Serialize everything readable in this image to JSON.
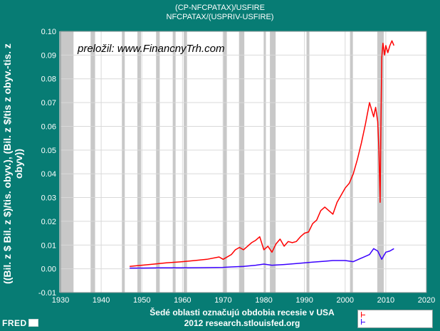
{
  "header": {
    "title_line1": "(CP-NFCPATAX)/USFIRE",
    "title_line2": "NFCPATAX/(USPRIV-USFIRE)"
  },
  "watermark": "preložil: www.FinancnyTrh.com",
  "footer": {
    "xlabel_line1": "Šedé oblasti označujú obdobia recesie v USA",
    "xlabel_line2": "2012 research.stlouisfed.org",
    "logo_text": "FRED"
  },
  "colors": {
    "background": "#077c74",
    "plot_background": "#ffffff",
    "recession": "#c8c8c8",
    "grid": "#d9d9d9",
    "series1": "#ff0000",
    "series2": "#3a00ff"
  },
  "chart_data": {
    "type": "line",
    "ylabel": "((Bil. z $ Bil. z $)/tis. obyv.), (Bil. z $/tis z obyv.-tis. z obyv))",
    "xlim": [
      1930,
      2020
    ],
    "ylim": [
      -0.01,
      0.1
    ],
    "x_ticks": [
      "1930",
      "1940",
      "1950",
      "1960",
      "1970",
      "1980",
      "1990",
      "2000",
      "2010",
      "2020"
    ],
    "y_ticks": [
      "-0.01",
      "0.00",
      "0.01",
      "0.02",
      "0.03",
      "0.04",
      "0.05",
      "0.06",
      "0.07",
      "0.08",
      "0.09",
      "0.10"
    ],
    "recessions": [
      [
        1929.7,
        1933.2
      ],
      [
        1937.4,
        1938.5
      ],
      [
        1945.1,
        1945.8
      ],
      [
        1948.9,
        1949.8
      ],
      [
        1953.5,
        1954.4
      ],
      [
        1957.6,
        1958.3
      ],
      [
        1960.3,
        1961.1
      ],
      [
        1969.9,
        1970.9
      ],
      [
        1973.9,
        1975.2
      ],
      [
        1980.0,
        1980.5
      ],
      [
        1981.5,
        1982.9
      ],
      [
        1990.5,
        1991.2
      ],
      [
        2001.2,
        2001.9
      ],
      [
        2007.9,
        2009.5
      ]
    ],
    "series": [
      {
        "x": [
          1947,
          1950,
          1953,
          1956,
          1960,
          1963,
          1966,
          1969,
          1970,
          1972,
          1973,
          1974,
          1975,
          1976,
          1977,
          1978,
          1979,
          1980,
          1981,
          1982,
          1983,
          1984,
          1985,
          1986,
          1987,
          1988,
          1989,
          1990,
          1991,
          1992,
          1993,
          1994,
          1995,
          1996,
          1997,
          1998,
          1999,
          2000,
          2001,
          2002,
          2003,
          2004,
          2005,
          2006,
          2007,
          2007.5,
          2008,
          2008.3,
          2008.6,
          2008.8,
          2009,
          2009.3,
          2009.7,
          2010,
          2010.5,
          2011,
          2011.5,
          2012
        ],
        "values": [
          0.001,
          0.0015,
          0.002,
          0.0025,
          0.003,
          0.0035,
          0.004,
          0.005,
          0.004,
          0.006,
          0.008,
          0.009,
          0.008,
          0.0095,
          0.011,
          0.012,
          0.0135,
          0.008,
          0.0095,
          0.007,
          0.0105,
          0.0125,
          0.0095,
          0.0115,
          0.011,
          0.0115,
          0.0135,
          0.015,
          0.0155,
          0.019,
          0.0205,
          0.0245,
          0.026,
          0.0245,
          0.023,
          0.028,
          0.031,
          0.034,
          0.036,
          0.04,
          0.046,
          0.053,
          0.061,
          0.07,
          0.064,
          0.068,
          0.062,
          0.05,
          0.028,
          0.06,
          0.089,
          0.095,
          0.09,
          0.094,
          0.091,
          0.094,
          0.096,
          0.094
        ]
      },
      {
        "x": [
          1947,
          1950,
          1955,
          1960,
          1965,
          1970,
          1972,
          1975,
          1978,
          1980,
          1982,
          1985,
          1988,
          1990,
          1992,
          1995,
          1997,
          2000,
          2002,
          2004,
          2006,
          2007,
          2008,
          2009,
          2010,
          2011,
          2012
        ],
        "values": [
          0.0003,
          0.0003,
          0.0004,
          0.0004,
          0.0005,
          0.0006,
          0.0008,
          0.001,
          0.0015,
          0.002,
          0.0015,
          0.0018,
          0.0022,
          0.0025,
          0.0028,
          0.0032,
          0.0035,
          0.0035,
          0.003,
          0.0045,
          0.006,
          0.0085,
          0.0075,
          0.004,
          0.007,
          0.0075,
          0.0085
        ]
      }
    ]
  }
}
